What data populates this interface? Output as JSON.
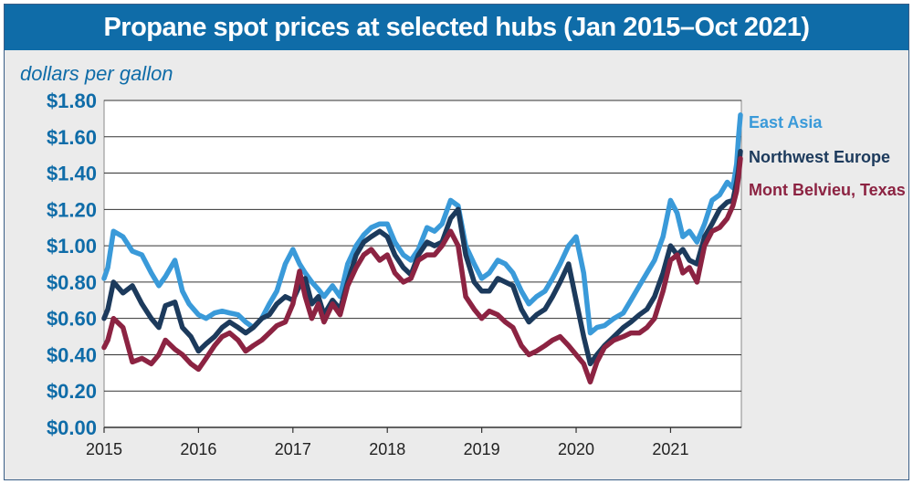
{
  "title": "Propane spot prices at selected hubs (Jan 2015–Oct 2021)",
  "colors": {
    "title_bg": "#0f6ca8",
    "panel_bg": "#ebebeb",
    "plot_bg": "#ffffff",
    "axis_text": "#0f6ca8",
    "xaxis_text": "#222222",
    "grid": "#333333"
  },
  "chart_data": {
    "type": "line",
    "title": "Propane spot prices at selected hubs (Jan 2015–Oct 2021)",
    "ylabel": "dollars per gallon",
    "xlabel": "",
    "xlim": [
      2015.0,
      2021.75
    ],
    "ylim": [
      0,
      1.8
    ],
    "y_ticks": [
      0,
      0.2,
      0.4,
      0.6,
      0.8,
      1.0,
      1.2,
      1.4,
      1.6,
      1.8
    ],
    "y_tick_labels": [
      "$0.00",
      "$0.20",
      "$0.40",
      "$0.60",
      "$0.80",
      "$1.00",
      "$1.20",
      "$1.40",
      "$1.60",
      "$1.80"
    ],
    "x_ticks": [
      2015,
      2016,
      2017,
      2018,
      2019,
      2020,
      2021
    ],
    "x_tick_labels": [
      "2015",
      "2016",
      "2017",
      "2018",
      "2019",
      "2020",
      "2021"
    ],
    "grid": "horizontal",
    "legend": "right, at line ends",
    "series": [
      {
        "name": "East Asia",
        "color": "#3a9ad9",
        "x": [
          2015.0,
          2015.04,
          2015.1,
          2015.2,
          2015.3,
          2015.4,
          2015.5,
          2015.58,
          2015.65,
          2015.75,
          2015.83,
          2015.9,
          2016.0,
          2016.08,
          2016.17,
          2016.25,
          2016.33,
          2016.42,
          2016.5,
          2016.58,
          2016.67,
          2016.75,
          2016.83,
          2016.92,
          2017.0,
          2017.07,
          2017.13,
          2017.2,
          2017.27,
          2017.33,
          2017.42,
          2017.5,
          2017.58,
          2017.67,
          2017.75,
          2017.83,
          2017.92,
          2018.0,
          2018.08,
          2018.17,
          2018.25,
          2018.33,
          2018.42,
          2018.5,
          2018.58,
          2018.67,
          2018.75,
          2018.83,
          2018.92,
          2019.0,
          2019.08,
          2019.17,
          2019.25,
          2019.33,
          2019.42,
          2019.5,
          2019.58,
          2019.67,
          2019.75,
          2019.83,
          2019.92,
          2020.0,
          2020.08,
          2020.15,
          2020.22,
          2020.3,
          2020.4,
          2020.5,
          2020.58,
          2020.67,
          2020.75,
          2020.83,
          2020.92,
          2021.0,
          2021.07,
          2021.13,
          2021.2,
          2021.28,
          2021.36,
          2021.44,
          2021.52,
          2021.6,
          2021.66,
          2021.7,
          2021.72,
          2021.74
        ],
        "y": [
          0.82,
          0.88,
          1.08,
          1.05,
          0.97,
          0.95,
          0.85,
          0.78,
          0.83,
          0.92,
          0.75,
          0.68,
          0.62,
          0.6,
          0.63,
          0.64,
          0.63,
          0.62,
          0.58,
          0.55,
          0.6,
          0.68,
          0.75,
          0.9,
          0.98,
          0.9,
          0.85,
          0.8,
          0.76,
          0.72,
          0.78,
          0.72,
          0.9,
          1.0,
          1.06,
          1.1,
          1.12,
          1.12,
          1.02,
          0.95,
          0.92,
          0.98,
          1.1,
          1.08,
          1.12,
          1.25,
          1.22,
          1.0,
          0.9,
          0.82,
          0.85,
          0.92,
          0.9,
          0.85,
          0.75,
          0.68,
          0.72,
          0.75,
          0.82,
          0.9,
          1.0,
          1.05,
          0.85,
          0.52,
          0.55,
          0.56,
          0.6,
          0.63,
          0.7,
          0.78,
          0.85,
          0.92,
          1.05,
          1.25,
          1.18,
          1.05,
          1.08,
          1.02,
          1.12,
          1.25,
          1.28,
          1.35,
          1.32,
          1.45,
          1.6,
          1.72
        ]
      },
      {
        "name": "Northwest Europe",
        "color": "#1c3a5c",
        "x": [
          2015.0,
          2015.04,
          2015.1,
          2015.2,
          2015.3,
          2015.4,
          2015.5,
          2015.58,
          2015.65,
          2015.75,
          2015.83,
          2015.92,
          2016.0,
          2016.08,
          2016.17,
          2016.25,
          2016.33,
          2016.42,
          2016.5,
          2016.58,
          2016.67,
          2016.75,
          2016.83,
          2016.92,
          2017.0,
          2017.07,
          2017.13,
          2017.2,
          2017.27,
          2017.33,
          2017.42,
          2017.5,
          2017.58,
          2017.67,
          2017.75,
          2017.83,
          2017.92,
          2018.0,
          2018.08,
          2018.17,
          2018.25,
          2018.33,
          2018.42,
          2018.5,
          2018.58,
          2018.67,
          2018.75,
          2018.83,
          2018.92,
          2019.0,
          2019.08,
          2019.17,
          2019.25,
          2019.33,
          2019.42,
          2019.5,
          2019.58,
          2019.67,
          2019.75,
          2019.83,
          2019.92,
          2020.0,
          2020.08,
          2020.15,
          2020.22,
          2020.3,
          2020.4,
          2020.5,
          2020.58,
          2020.67,
          2020.75,
          2020.83,
          2020.92,
          2021.0,
          2021.07,
          2021.13,
          2021.2,
          2021.28,
          2021.36,
          2021.44,
          2021.52,
          2021.6,
          2021.66,
          2021.7,
          2021.72,
          2021.74
        ],
        "y": [
          0.6,
          0.65,
          0.8,
          0.74,
          0.78,
          0.68,
          0.6,
          0.55,
          0.67,
          0.69,
          0.55,
          0.5,
          0.42,
          0.46,
          0.5,
          0.55,
          0.58,
          0.55,
          0.52,
          0.55,
          0.6,
          0.62,
          0.68,
          0.72,
          0.7,
          0.78,
          0.82,
          0.68,
          0.72,
          0.62,
          0.7,
          0.65,
          0.8,
          0.95,
          1.02,
          1.05,
          1.08,
          1.05,
          0.95,
          0.88,
          0.84,
          0.95,
          1.02,
          1.0,
          1.02,
          1.15,
          1.2,
          0.95,
          0.8,
          0.75,
          0.75,
          0.82,
          0.8,
          0.78,
          0.65,
          0.58,
          0.62,
          0.65,
          0.72,
          0.8,
          0.9,
          0.7,
          0.5,
          0.35,
          0.4,
          0.45,
          0.5,
          0.55,
          0.58,
          0.62,
          0.65,
          0.72,
          0.85,
          1.0,
          0.95,
          0.98,
          0.92,
          0.9,
          1.05,
          1.12,
          1.2,
          1.24,
          1.25,
          1.35,
          1.42,
          1.52
        ]
      },
      {
        "name": "Mont Belvieu, Texas",
        "color": "#8c2342",
        "x": [
          2015.0,
          2015.04,
          2015.1,
          2015.2,
          2015.3,
          2015.4,
          2015.5,
          2015.58,
          2015.65,
          2015.75,
          2015.83,
          2015.92,
          2016.0,
          2016.08,
          2016.17,
          2016.25,
          2016.33,
          2016.42,
          2016.5,
          2016.58,
          2016.67,
          2016.75,
          2016.83,
          2016.92,
          2017.0,
          2017.07,
          2017.13,
          2017.2,
          2017.27,
          2017.33,
          2017.42,
          2017.5,
          2017.58,
          2017.67,
          2017.75,
          2017.83,
          2017.92,
          2018.0,
          2018.08,
          2018.17,
          2018.25,
          2018.33,
          2018.42,
          2018.5,
          2018.58,
          2018.67,
          2018.75,
          2018.83,
          2018.92,
          2019.0,
          2019.08,
          2019.17,
          2019.25,
          2019.33,
          2019.42,
          2019.5,
          2019.58,
          2019.67,
          2019.75,
          2019.83,
          2019.92,
          2020.0,
          2020.08,
          2020.15,
          2020.22,
          2020.3,
          2020.4,
          2020.5,
          2020.58,
          2020.67,
          2020.75,
          2020.83,
          2020.92,
          2021.0,
          2021.07,
          2021.13,
          2021.2,
          2021.28,
          2021.36,
          2021.44,
          2021.52,
          2021.6,
          2021.66,
          2021.7,
          2021.72,
          2021.74
        ],
        "y": [
          0.44,
          0.48,
          0.6,
          0.55,
          0.36,
          0.38,
          0.35,
          0.4,
          0.48,
          0.43,
          0.4,
          0.35,
          0.32,
          0.38,
          0.45,
          0.5,
          0.52,
          0.48,
          0.42,
          0.45,
          0.48,
          0.52,
          0.56,
          0.58,
          0.68,
          0.86,
          0.72,
          0.6,
          0.68,
          0.58,
          0.68,
          0.62,
          0.78,
          0.88,
          0.95,
          0.98,
          0.92,
          0.95,
          0.85,
          0.8,
          0.82,
          0.92,
          0.95,
          0.95,
          1.0,
          1.08,
          1.0,
          0.72,
          0.65,
          0.6,
          0.64,
          0.62,
          0.58,
          0.55,
          0.45,
          0.4,
          0.42,
          0.45,
          0.48,
          0.5,
          0.45,
          0.4,
          0.35,
          0.25,
          0.36,
          0.44,
          0.48,
          0.5,
          0.52,
          0.52,
          0.55,
          0.6,
          0.75,
          0.92,
          0.95,
          0.85,
          0.88,
          0.8,
          1.0,
          1.08,
          1.1,
          1.15,
          1.22,
          1.3,
          1.38,
          1.48
        ]
      }
    ]
  }
}
